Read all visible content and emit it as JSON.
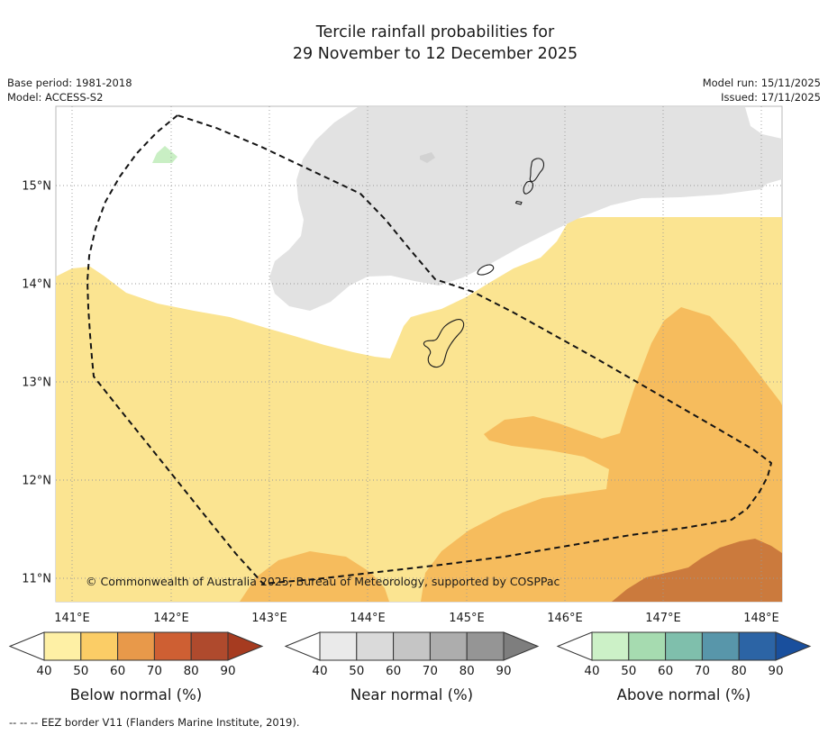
{
  "title": {
    "line1": "Tercile rainfall probabilities for",
    "line2": "29 November to 12 December 2025"
  },
  "meta": {
    "base_period": "Base period: 1981-2018",
    "model": "Model: ACCESS-S2",
    "model_run": "Model run: 15/11/2025",
    "issued": "Issued: 17/11/2025"
  },
  "map": {
    "lon_ticks": [
      "141°E",
      "142°E",
      "143°E",
      "144°E",
      "145°E",
      "146°E",
      "147°E",
      "148°E"
    ],
    "lat_ticks": [
      "15°N",
      "14°N",
      "13°N",
      "12°N",
      "11°N"
    ],
    "copyright": "© Commonwealth of Australia 2025, Bureau of Meteorology, supported by COSPPac",
    "colors": {
      "background": "#ffffff",
      "below_40_50": "#FBE491",
      "below_50_60": "#F6BC5D",
      "below_60_70": "#CB7A3D",
      "near_40_50": "#E2E2E2",
      "near_50_60": "#D2D2D2",
      "above_40_50": "#C9EFC4",
      "eez_border": "#141414",
      "grid": "#999999",
      "coastline": "#1c1c1c"
    }
  },
  "legends": [
    {
      "label": "Below normal (%)",
      "ticks": [
        "40",
        "50",
        "60",
        "70",
        "80",
        "90"
      ],
      "cells": [
        "#FEF0A5",
        "#FBCD66",
        "#E8994A",
        "#CE5F33",
        "#AF4A2D"
      ],
      "arrow": "#A63B20"
    },
    {
      "label": "Near normal (%)",
      "ticks": [
        "40",
        "50",
        "60",
        "70",
        "80",
        "90"
      ],
      "cells": [
        "#EAEAEA",
        "#DADADA",
        "#C5C5C5",
        "#ADADAD",
        "#959595"
      ],
      "arrow": "#7E7E7E"
    },
    {
      "label": "Above normal (%)",
      "ticks": [
        "40",
        "50",
        "60",
        "70",
        "80",
        "90"
      ],
      "cells": [
        "#CCF1C7",
        "#A6DBB0",
        "#7FBFAC",
        "#5896AA",
        "#2C64A5"
      ],
      "arrow": "#194F9D"
    }
  ],
  "footnote": "--  --  --  EEZ border V11 (Flanders Marine Institute, 2019).",
  "chart_data": {
    "type": "map",
    "title": "Tercile rainfall probabilities for 29 November to 12 December 2025",
    "extent": {
      "lon_min": 140.84,
      "lon_max": 148.21,
      "lat_min": 10.76,
      "lat_max": 15.8
    },
    "lon_gridlines_deg_E": [
      141,
      142,
      143,
      144,
      145,
      146,
      147,
      148
    ],
    "lat_gridlines_deg_N": [
      15,
      14,
      13,
      12,
      11
    ],
    "grid": "dotted",
    "regions": [
      {
        "category": "below_normal",
        "probability_pct": "40-50",
        "color": "#FBE491",
        "coverage": "large area over the southern half of the domain, roughly south of a wavy line from 14°N at 141°E dipping near Guam then rising to ~14.7°N east of 145.5°E"
      },
      {
        "category": "below_normal",
        "probability_pct": "50-60",
        "color": "#F6BC5D",
        "coverage": "broad south-eastern region (145.5–148°E below ~13.2°N, bulging north near 147°E) plus a small lobe near 142.7°E, 11°N"
      },
      {
        "category": "below_normal",
        "probability_pct": "60-70",
        "color": "#CB7A3D",
        "coverage": "bottom-right corner around 146.8–148°E south of ~11.4°N"
      },
      {
        "category": "near_normal",
        "probability_pct": "40-50",
        "color": "#E2E2E2",
        "coverage": "large northern blob covering Saipan/Tinian area, from ~143.3°E to the eastern edge, north of ~14.8°N in the east"
      },
      {
        "category": "near_normal",
        "probability_pct": "50-60",
        "color": "#D2D2D2",
        "coverage": "tiny patch near 144.6°E, 15.3°N"
      },
      {
        "category": "above_normal",
        "probability_pct": "40-50",
        "color": "#C9EFC4",
        "coverage": "small patch near 142°E, 15.4°N inside the EEZ apex"
      },
      {
        "category": "none_dominant",
        "probability_pct": "<40",
        "color": "#ffffff",
        "coverage": "band between the grey and yellow regions and the north-west corner"
      }
    ],
    "overlays": [
      {
        "name": "EEZ border",
        "style": "black dashed closed polygon",
        "source_note": "EEZ border V11 (Flanders Marine Institute, 2019)"
      },
      {
        "name": "island coastlines",
        "style": "thin black outlines (Guam, Rota, Aguijan, Tinian, Saipan)"
      }
    ],
    "legend_scales": [
      {
        "name": "Below normal (%)",
        "bounds": [
          40,
          50,
          60,
          70,
          80,
          90
        ],
        "colors": [
          "#FEF0A5",
          "#FBCD66",
          "#E8994A",
          "#CE5F33",
          "#AF4A2D"
        ],
        "over_arrow": "#A63B20"
      },
      {
        "name": "Near normal (%)",
        "bounds": [
          40,
          50,
          60,
          70,
          80,
          90
        ],
        "colors": [
          "#EAEAEA",
          "#DADADA",
          "#C5C5C5",
          "#ADADAD",
          "#959595"
        ],
        "over_arrow": "#7E7E7E"
      },
      {
        "name": "Above normal (%)",
        "bounds": [
          40,
          50,
          60,
          70,
          80,
          90
        ],
        "colors": [
          "#CCF1C7",
          "#A6DBB0",
          "#7FBFAC",
          "#5896AA",
          "#2C64A5"
        ],
        "over_arrow": "#194F9D"
      }
    ]
  }
}
